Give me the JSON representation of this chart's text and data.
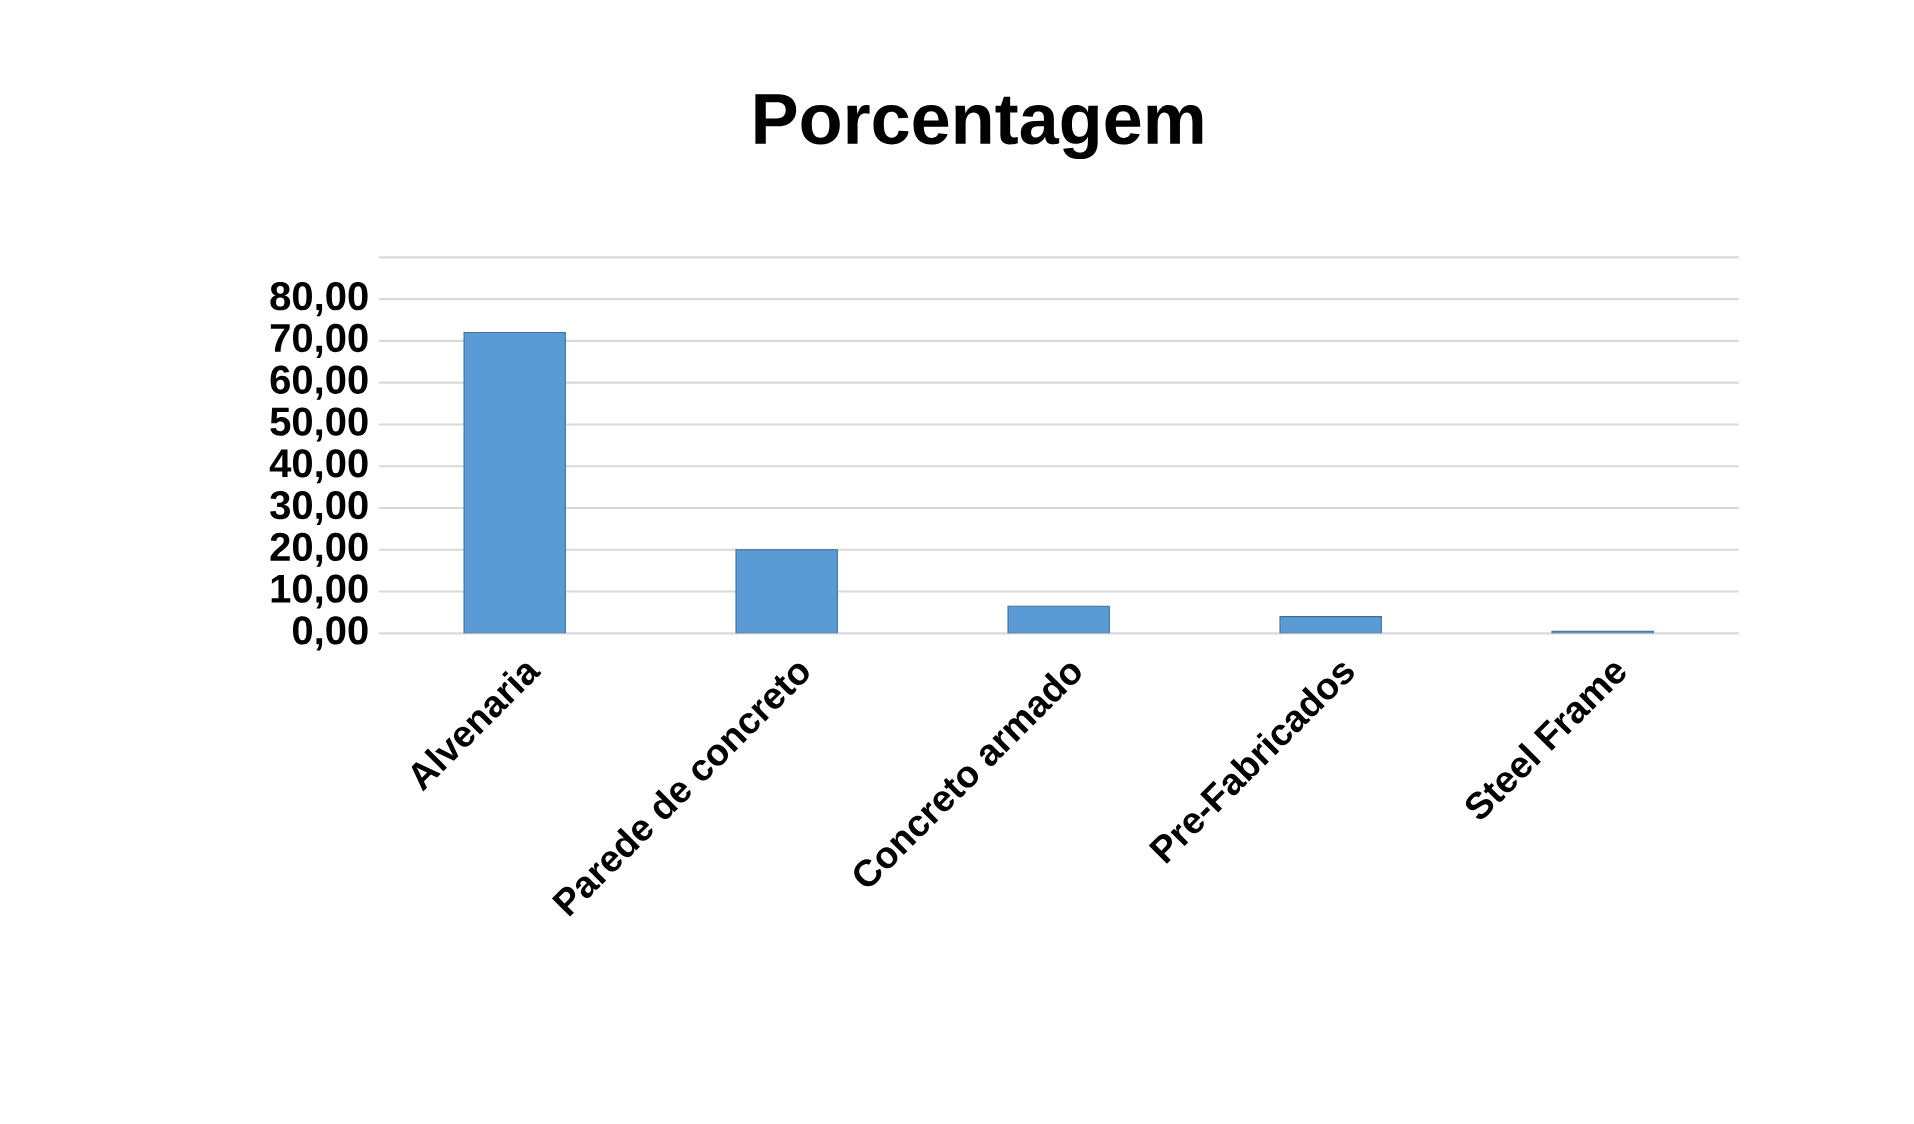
{
  "chart_data": {
    "type": "bar",
    "title": "Porcentagem",
    "categories": [
      "Alvenaria",
      "Parede de concreto",
      "Concreto armado",
      "Pre-Fabricados",
      "Steel Frame"
    ],
    "values": [
      72,
      20,
      6.5,
      4,
      0.5
    ],
    "color": "#5b9bd5",
    "ylim": [
      0,
      90
    ],
    "yticks": [
      {
        "value": 0,
        "label": "0,00"
      },
      {
        "value": 10,
        "label": "10,00"
      },
      {
        "value": 20,
        "label": "20,00"
      },
      {
        "value": 30,
        "label": "30,00"
      },
      {
        "value": 40,
        "label": "40,00"
      },
      {
        "value": 50,
        "label": "50,00"
      },
      {
        "value": 60,
        "label": "60,00"
      },
      {
        "value": 70,
        "label": "70,00"
      },
      {
        "value": 80,
        "label": "80,00"
      },
      {
        "value": 90,
        "label": null
      }
    ],
    "grid": true
  }
}
